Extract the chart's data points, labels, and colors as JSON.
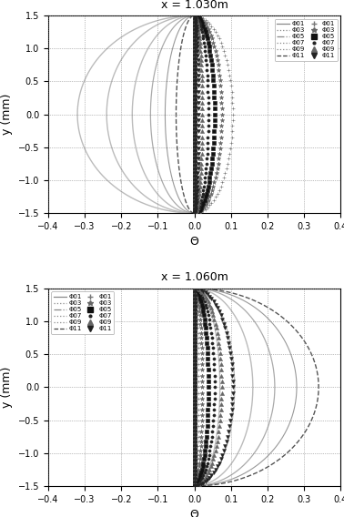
{
  "title1": "x = 1.030m",
  "title2": "x = 1.060m",
  "xlabel": "Θ",
  "ylabel": "y (mm)",
  "xlim": [
    -0.4,
    0.4
  ],
  "ylim": [
    -1.5,
    1.5
  ],
  "xticks": [
    -0.4,
    -0.3,
    -0.2,
    -0.1,
    0.0,
    0.1,
    0.2,
    0.3,
    0.4
  ],
  "yticks": [
    -1.5,
    -1.0,
    -0.5,
    0.0,
    0.5,
    1.0,
    1.5
  ],
  "plot1_smooth_scales": [
    -0.32,
    -0.24,
    -0.17,
    -0.12,
    -0.08,
    -0.05
  ],
  "plot1_smooth_styles": [
    "-",
    "-",
    "-",
    "-",
    "-",
    "--"
  ],
  "plot1_smooth_colors": [
    "#bbbbbb",
    "#bbbbbb",
    "#bbbbbb",
    "#aaaaaa",
    "#999999",
    "#555555"
  ],
  "plot1_smooth_lw": [
    1.0,
    1.0,
    1.0,
    0.9,
    0.8,
    1.0
  ],
  "plot1_dot_scales": [
    0.105,
    0.075,
    0.055,
    0.038,
    0.022,
    0.012
  ],
  "plot1_dot_markers": [
    "+",
    "*",
    "s",
    ".",
    "^",
    "v"
  ],
  "plot1_dot_colors": [
    "#777777",
    "#666666",
    "#111111",
    "#222222",
    "#666666",
    "#222222"
  ],
  "plot1_dot_ms": [
    3.5,
    3.5,
    2.8,
    4.5,
    3.0,
    2.8
  ],
  "plot2_smooth_scales": [
    0.07,
    0.11,
    0.16,
    0.22,
    0.28,
    0.34
  ],
  "plot2_smooth_styles": [
    "-",
    "-",
    "-",
    "-",
    "-",
    "--"
  ],
  "plot2_smooth_colors": [
    "#bbbbbb",
    "#bbbbbb",
    "#bbbbbb",
    "#aaaaaa",
    "#999999",
    "#555555"
  ],
  "plot2_smooth_lw": [
    1.0,
    1.0,
    1.0,
    0.9,
    0.8,
    1.0
  ],
  "plot2_dot_scales": [
    0.012,
    0.022,
    0.038,
    0.055,
    0.075,
    0.105
  ],
  "plot2_dot_markers": [
    "+",
    "*",
    "s",
    ".",
    "^",
    "v"
  ],
  "plot2_dot_colors": [
    "#777777",
    "#666666",
    "#111111",
    "#222222",
    "#666666",
    "#222222"
  ],
  "plot2_dot_ms": [
    3.5,
    3.5,
    2.8,
    4.5,
    3.0,
    2.8
  ],
  "leg_line_labels": [
    "Φ01",
    "Φ03",
    "Φ05",
    "Φ07",
    "Φ09",
    "Φ11"
  ],
  "leg_dot_labels": [
    "Φ01",
    "Φ03",
    "Φ05",
    "Φ07",
    "Φ09",
    "Φ11"
  ],
  "leg_line_styles": [
    "-",
    ":",
    "-.",
    ":",
    ":",
    "--"
  ],
  "leg_line_colors": [
    "#888888",
    "#888888",
    "#888888",
    "#888888",
    "#888888",
    "#444444"
  ],
  "leg_dot_markers": [
    "+",
    "*",
    "s",
    ".",
    "^",
    "v"
  ],
  "leg_dot_colors": [
    "#777777",
    "#666666",
    "#111111",
    "#222222",
    "#666666",
    "#222222"
  ]
}
